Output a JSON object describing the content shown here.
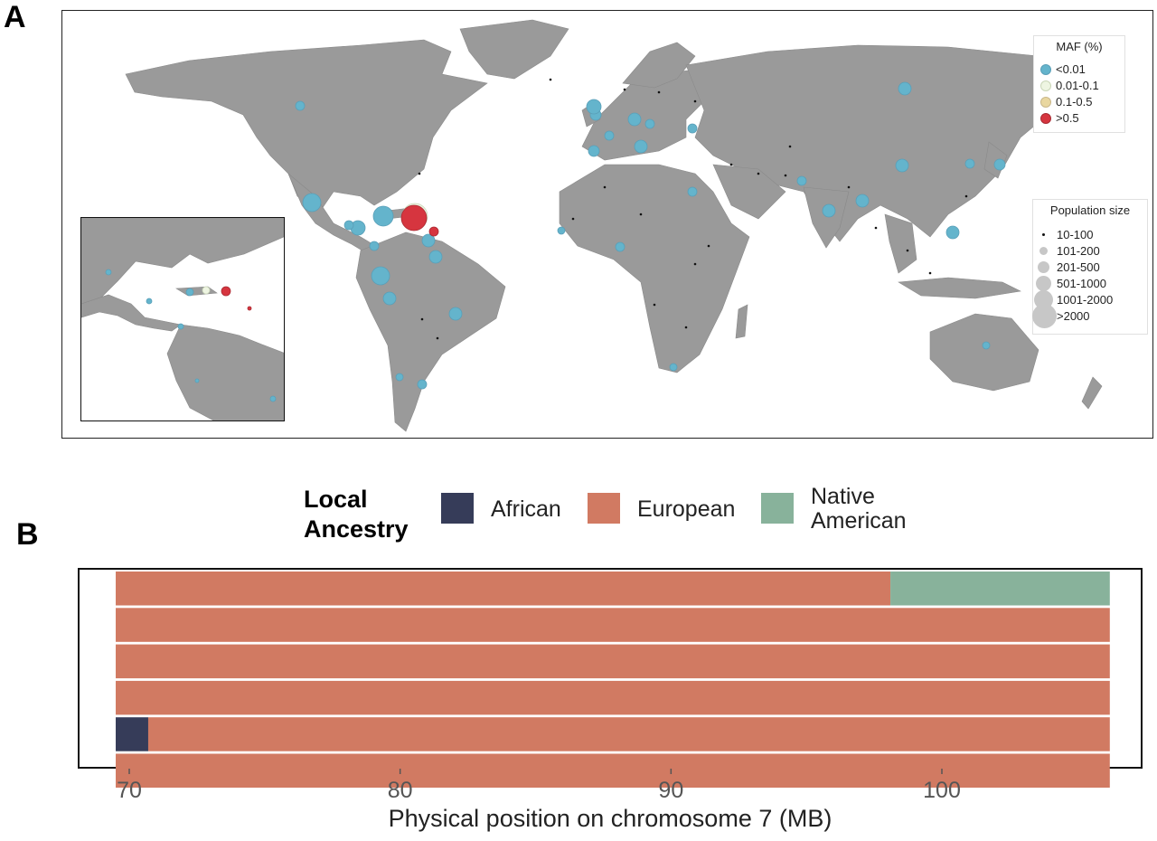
{
  "panels": {
    "a_label": "A",
    "b_label": "B"
  },
  "map": {
    "maf_legend": {
      "title": "MAF (%)",
      "items": [
        {
          "label": "<0.01",
          "color": "#64b4cc"
        },
        {
          "label": "0.01-0.1",
          "color": "#eef5e2"
        },
        {
          "label": "0.1-0.5",
          "color": "#e9d7a0"
        },
        {
          "label": ">0.5",
          "color": "#d6353f"
        }
      ]
    },
    "size_legend": {
      "title": "Population size",
      "items": [
        "10-100",
        "101-200",
        "201-500",
        "501-1000",
        "1001-2000",
        ">2000"
      ]
    },
    "land_color": "#9a9a9a"
  },
  "chart_data": {
    "type": "bar",
    "subtype": "horizontal-stacked-segments",
    "legend": {
      "title": "Local Ancestry",
      "entries": [
        {
          "name": "African",
          "color": "#363c59"
        },
        {
          "name": "European",
          "color": "#d17a62"
        },
        {
          "name": "Native American",
          "color": "#88b29b"
        }
      ]
    },
    "xlabel": "Physical position on chromosome 7 (MB)",
    "xticks": [
      70,
      80,
      90,
      100
    ],
    "xlim": [
      69.5,
      106.5
    ],
    "haplotypes": [
      {
        "segments": [
          {
            "start": 69.5,
            "end": 98.1,
            "ancestry": "European"
          },
          {
            "start": 98.1,
            "end": 106.2,
            "ancestry": "Native American"
          }
        ]
      },
      {
        "segments": [
          {
            "start": 69.5,
            "end": 106.2,
            "ancestry": "European"
          }
        ]
      },
      {
        "segments": [
          {
            "start": 69.5,
            "end": 106.2,
            "ancestry": "European"
          }
        ]
      },
      {
        "segments": [
          {
            "start": 69.5,
            "end": 106.2,
            "ancestry": "European"
          }
        ]
      },
      {
        "segments": [
          {
            "start": 69.5,
            "end": 70.7,
            "ancestry": "African"
          },
          {
            "start": 70.7,
            "end": 106.2,
            "ancestry": "European"
          }
        ]
      },
      {
        "segments": [
          {
            "start": 69.5,
            "end": 106.2,
            "ancestry": "European"
          }
        ]
      }
    ]
  }
}
